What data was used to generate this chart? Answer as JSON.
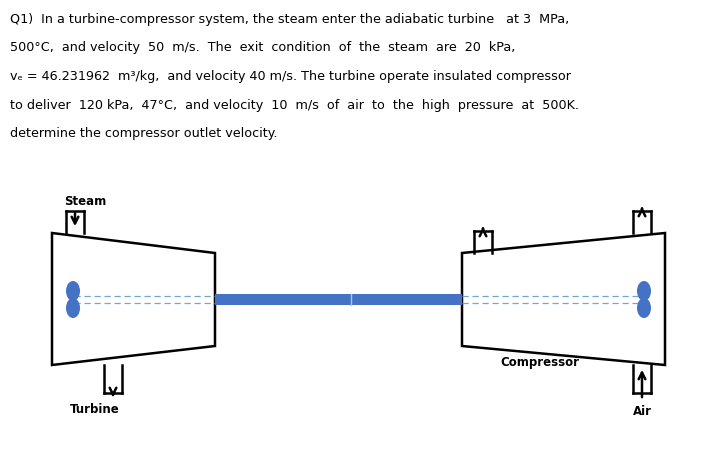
{
  "bg_color": "#ffffff",
  "text_color": "#000000",
  "line1": "Q1)  In a turbine-compressor system, the steam enter the adiabatic turbine   at 3  MPa,",
  "line2": "500°C,  and velocity  50  m/s.  The  exit  condition  of  the  steam  are  20  kPa,",
  "line3": "vₑ = 46.231962  m³/kg,  and velocity 40 m/s. The turbine operate insulated compressor",
  "line4": "to deliver  120 kPa,  47°C,  and velocity  10  m/s  of  air  to  the  high  pressure  at  500K.",
  "line5": "determine the compressor outlet velocity.",
  "turbine_label": "Turbine",
  "compressor_label": "Compressor",
  "steam_label": "Steam",
  "air_label": "Air",
  "shaft_color": "#4472c4",
  "dashed_color": "#6fa8d4",
  "rotor_color": "#4472c4",
  "outline_color": "#000000",
  "lw": 1.8
}
